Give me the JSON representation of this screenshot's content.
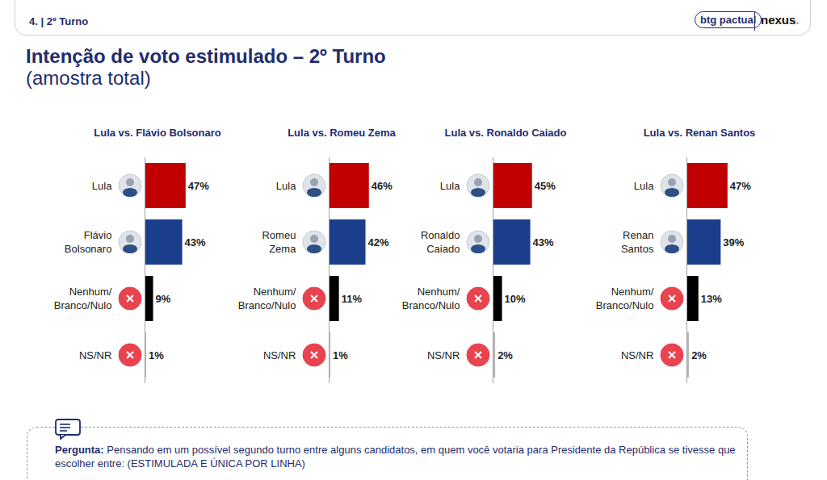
{
  "header": {
    "section": "4. | 2º Turno",
    "logos": [
      "btg pactual",
      "nexus."
    ]
  },
  "title": "Intenção de voto estimulado – 2º Turno",
  "subtitle": "(amostra total)",
  "chart_data": [
    {
      "type": "bar",
      "orientation": "horizontal",
      "title": "Lula vs. Flávio Bolsonaro",
      "categories": [
        "Lula",
        "Flávio Bolsonaro",
        "Nenhum/Branco/Nulo",
        "NS/NR"
      ],
      "values": [
        47,
        43,
        9,
        1
      ],
      "value_labels": [
        "47%",
        "43%",
        "9%",
        "1%"
      ],
      "colors": [
        "#c00000",
        "#1a3e8c",
        "#000000",
        "#b8b8b8"
      ],
      "xlim": [
        0,
        100
      ],
      "data_labels": true,
      "tick_labels": "y",
      "grid": false
    },
    {
      "type": "bar",
      "orientation": "horizontal",
      "title": "Lula vs. Romeu Zema",
      "categories": [
        "Lula",
        "Romeu Zema",
        "Nenhum/Branco/Nulo",
        "NS/NR"
      ],
      "values": [
        46,
        42,
        11,
        1
      ],
      "value_labels": [
        "46%",
        "42%",
        "11%",
        "1%"
      ],
      "colors": [
        "#c00000",
        "#1a3e8c",
        "#000000",
        "#b8b8b8"
      ],
      "xlim": [
        0,
        100
      ],
      "data_labels": true,
      "tick_labels": "y",
      "grid": false
    },
    {
      "type": "bar",
      "orientation": "horizontal",
      "title": "Lula vs. Ronaldo Caiado",
      "categories": [
        "Lula",
        "Ronaldo Caiado",
        "Nenhum/Branco/Nulo",
        "NS/NR"
      ],
      "values": [
        45,
        43,
        10,
        2
      ],
      "value_labels": [
        "45%",
        "43%",
        "10%",
        "2%"
      ],
      "colors": [
        "#c00000",
        "#1a3e8c",
        "#000000",
        "#b8b8b8"
      ],
      "xlim": [
        0,
        100
      ],
      "data_labels": true,
      "tick_labels": "y",
      "grid": false
    },
    {
      "type": "bar",
      "orientation": "horizontal",
      "title": "Lula vs. Renan Santos",
      "categories": [
        "Lula",
        "Renan Santos",
        "Nenhum/Branco/Nulo",
        "NS/NR"
      ],
      "values": [
        47,
        39,
        13,
        2
      ],
      "value_labels": [
        "47%",
        "39%",
        "13%",
        "2%"
      ],
      "colors": [
        "#c00000",
        "#1a3e8c",
        "#000000",
        "#b8b8b8"
      ],
      "xlim": [
        0,
        100
      ],
      "data_labels": true,
      "tick_labels": "y",
      "grid": false
    }
  ],
  "footer": {
    "label": "Pergunta:",
    "text": "Pensando em um possível segundo turno entre alguns candidatos, em quem você votaria para Presidente da República se tivesse que escolher entre: (ESTIMULADA E ÚNICA POR LINHA)"
  }
}
